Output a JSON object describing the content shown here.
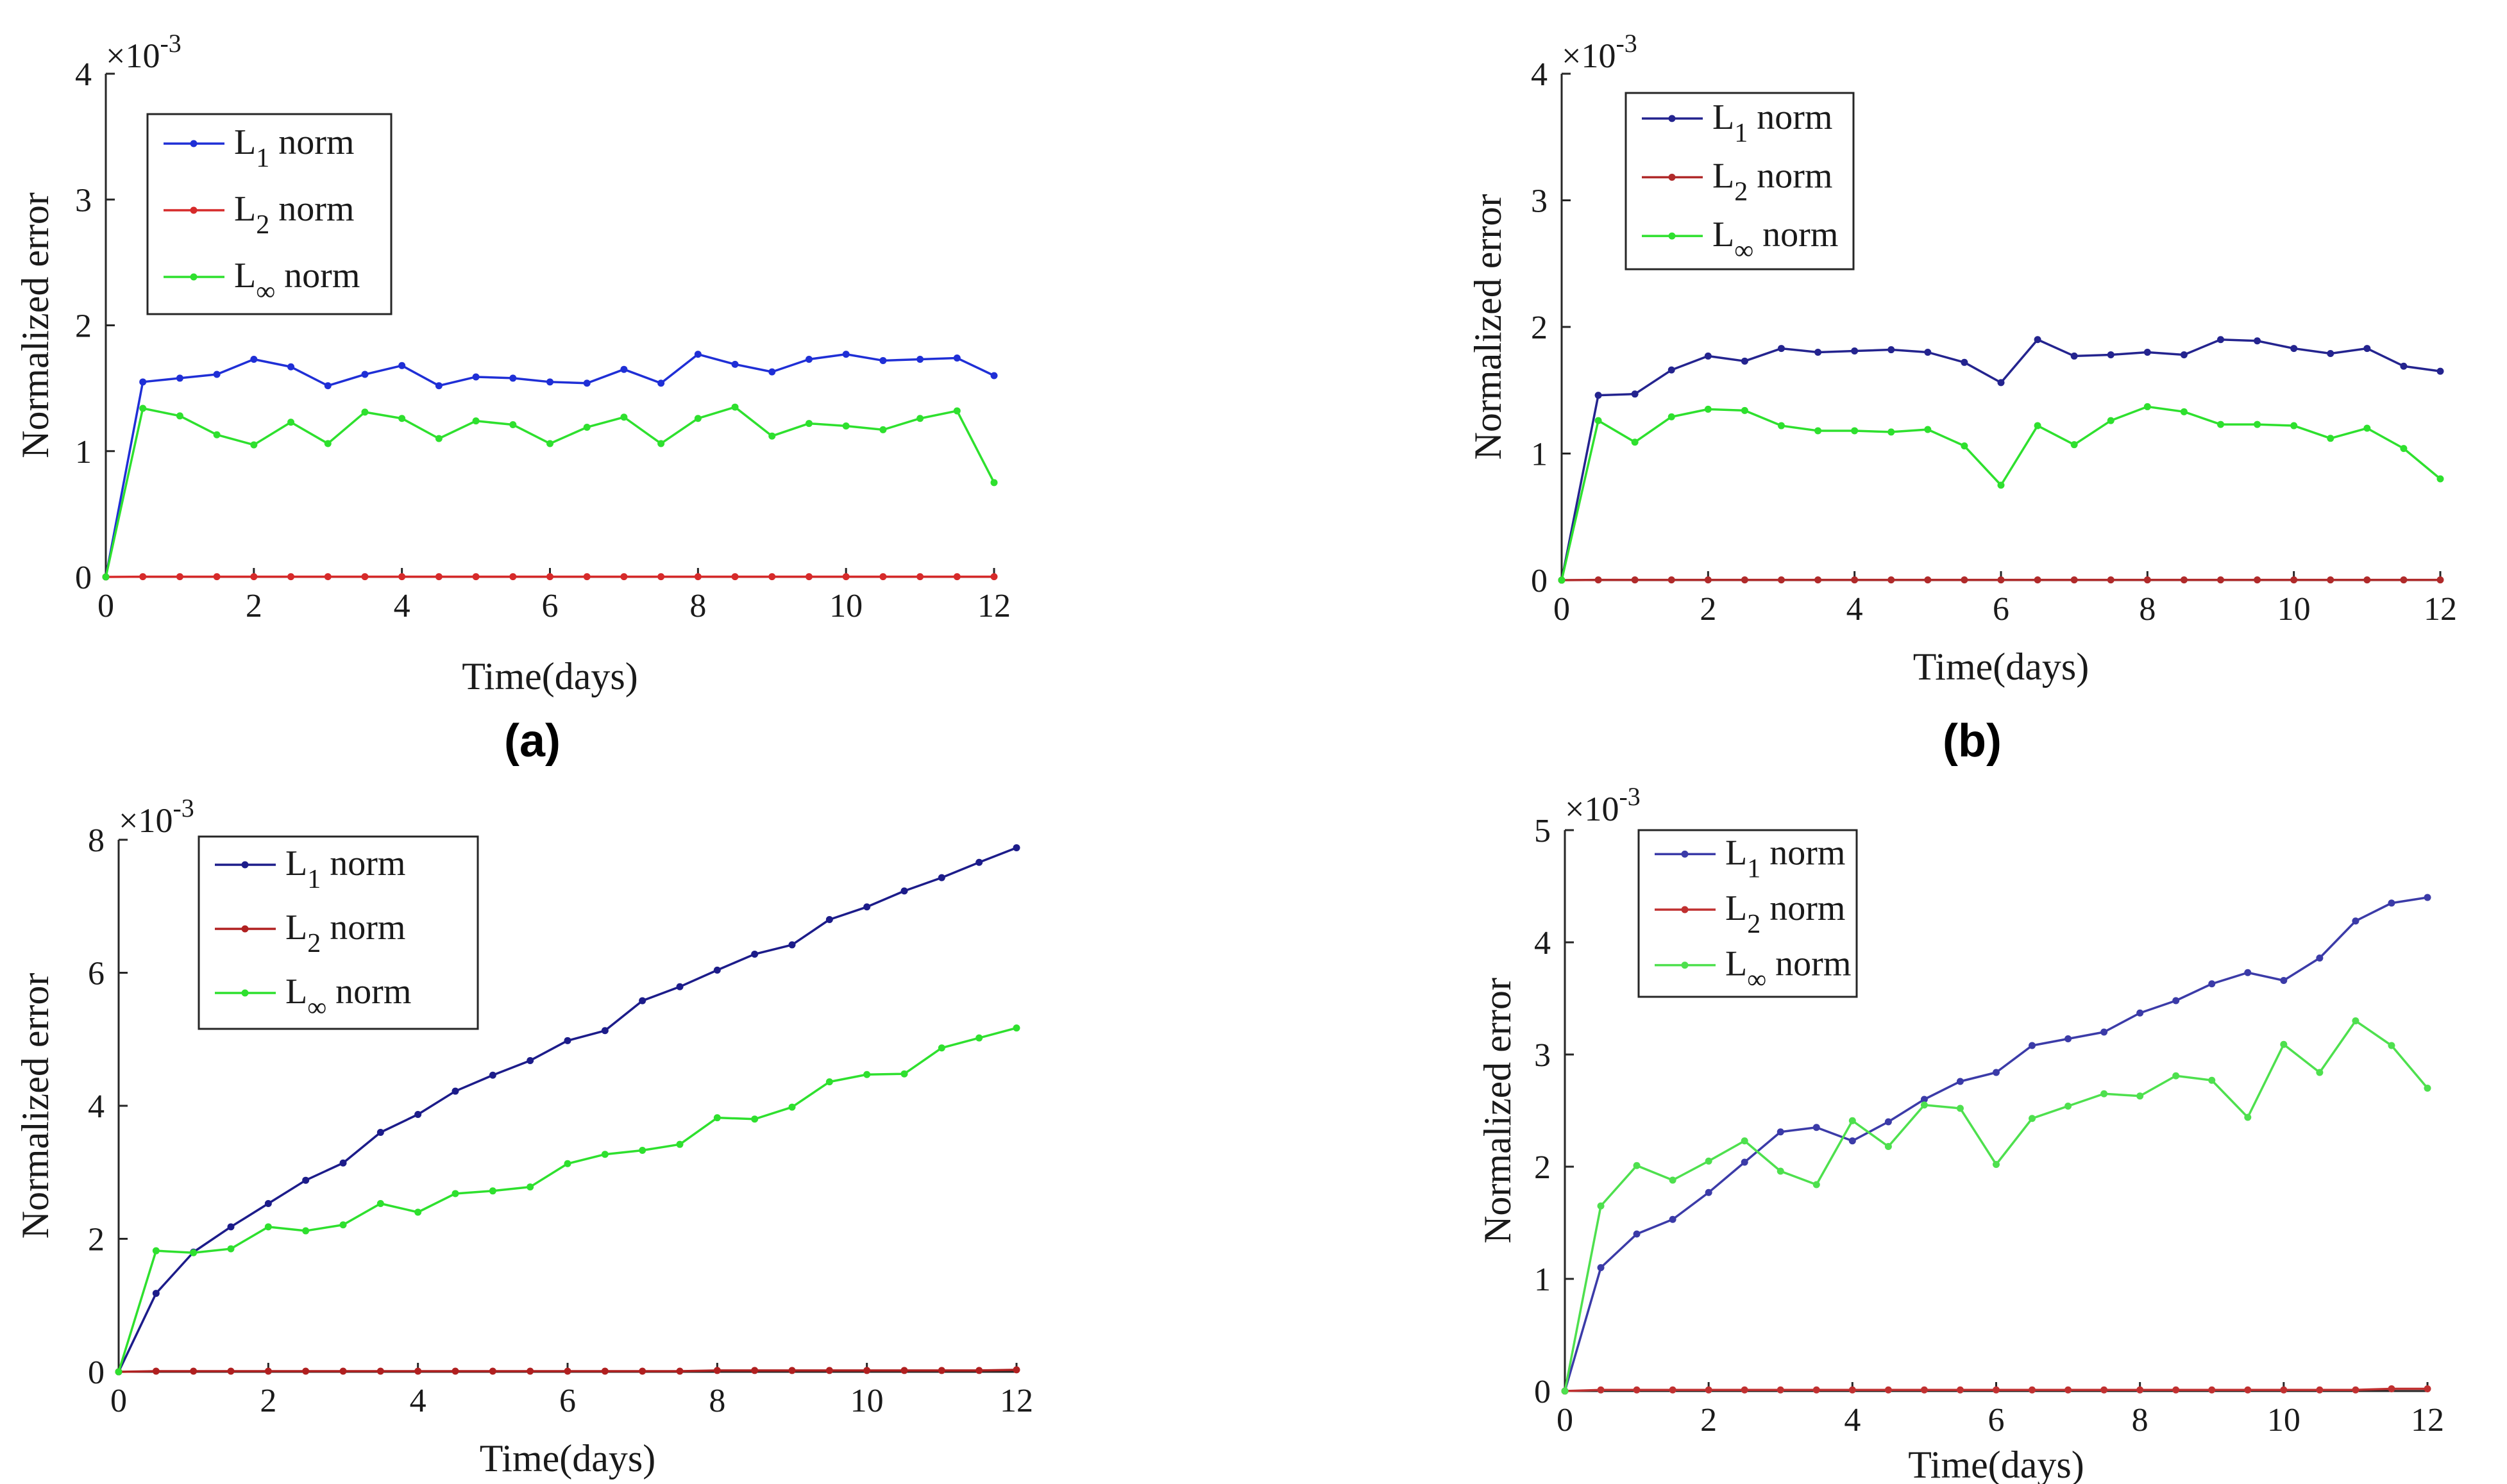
{
  "chart_data": [
    {
      "type": "line",
      "panel_label": "(a)",
      "sci_multiplier": "×10",
      "sci_exponent": "-3",
      "xlabel": "Time(days)",
      "ylabel": "Normalized error",
      "xlim": [
        0,
        12
      ],
      "ylim": [
        0,
        4
      ],
      "xticks": [
        "0",
        "2",
        "4",
        "6",
        "8",
        "10",
        "12"
      ],
      "yticks": [
        "0",
        "1",
        "2",
        "3",
        "4"
      ],
      "legend_position": "top-left",
      "x": [
        0,
        0.5,
        1,
        1.5,
        2,
        2.5,
        3,
        3.5,
        4,
        4.5,
        5,
        5.5,
        6,
        6.5,
        7,
        7.5,
        8,
        8.5,
        9,
        9.5,
        10,
        10.5,
        11,
        11.5,
        12
      ],
      "series": [
        {
          "name": "L1 norm",
          "base": "L",
          "sub": "1",
          "rest": " norm",
          "color": "#1f2fd6",
          "values": [
            0,
            1.55,
            1.58,
            1.61,
            1.73,
            1.67,
            1.52,
            1.61,
            1.68,
            1.52,
            1.59,
            1.58,
            1.55,
            1.54,
            1.65,
            1.54,
            1.77,
            1.69,
            1.63,
            1.73,
            1.77,
            1.72,
            1.73,
            1.74,
            1.6
          ]
        },
        {
          "name": "L2 norm",
          "base": "L",
          "sub": "2",
          "rest": " norm",
          "color": "#d62a2a",
          "values": [
            0,
            0.002,
            0.002,
            0.002,
            0.002,
            0.002,
            0.002,
            0.002,
            0.002,
            0.002,
            0.002,
            0.002,
            0.002,
            0.002,
            0.002,
            0.002,
            0.002,
            0.002,
            0.002,
            0.002,
            0.002,
            0.002,
            0.002,
            0.002,
            0.002
          ]
        },
        {
          "name": "L∞ norm",
          "base": "L",
          "sub": "∞",
          "rest": " norm",
          "color": "#2ee02e",
          "values": [
            0,
            1.34,
            1.28,
            1.13,
            1.05,
            1.23,
            1.06,
            1.31,
            1.26,
            1.1,
            1.24,
            1.21,
            1.06,
            1.19,
            1.27,
            1.06,
            1.26,
            1.35,
            1.12,
            1.22,
            1.2,
            1.17,
            1.26,
            1.32,
            0.75
          ]
        }
      ]
    },
    {
      "type": "line",
      "panel_label": "(b)",
      "sci_multiplier": "×10",
      "sci_exponent": "-3",
      "xlabel": "Time(days)",
      "ylabel": "Normalized error",
      "xlim": [
        0,
        12
      ],
      "ylim": [
        0,
        4
      ],
      "xticks": [
        "0",
        "2",
        "4",
        "6",
        "8",
        "10",
        "12"
      ],
      "yticks": [
        "0",
        "1",
        "2",
        "3",
        "4"
      ],
      "legend_position": "top-left",
      "x": [
        0,
        0.5,
        1,
        1.5,
        2,
        2.5,
        3,
        3.5,
        4,
        4.5,
        5,
        5.5,
        6,
        6.5,
        7,
        7.5,
        8,
        8.5,
        9,
        9.5,
        10,
        10.5,
        11,
        11.5,
        12
      ],
      "series": [
        {
          "name": "L1 norm",
          "base": "L",
          "sub": "1",
          "rest": " norm",
          "color": "#24248f",
          "values": [
            0,
            1.46,
            1.47,
            1.66,
            1.77,
            1.73,
            1.83,
            1.8,
            1.81,
            1.82,
            1.8,
            1.72,
            1.56,
            1.9,
            1.77,
            1.78,
            1.8,
            1.78,
            1.9,
            1.89,
            1.83,
            1.79,
            1.83,
            1.69,
            1.65
          ]
        },
        {
          "name": "L2 norm",
          "base": "L",
          "sub": "2",
          "rest": " norm",
          "color": "#b02a2a",
          "values": [
            0,
            0.002,
            0.002,
            0.002,
            0.002,
            0.002,
            0.002,
            0.002,
            0.002,
            0.002,
            0.002,
            0.002,
            0.002,
            0.002,
            0.002,
            0.002,
            0.002,
            0.002,
            0.002,
            0.002,
            0.002,
            0.002,
            0.002,
            0.002,
            0.002
          ]
        },
        {
          "name": "L∞ norm",
          "base": "L",
          "sub": "∞",
          "rest": " norm",
          "color": "#2ee02e",
          "values": [
            0,
            1.26,
            1.09,
            1.29,
            1.35,
            1.34,
            1.22,
            1.18,
            1.18,
            1.17,
            1.19,
            1.06,
            0.75,
            1.22,
            1.07,
            1.26,
            1.37,
            1.33,
            1.23,
            1.23,
            1.22,
            1.12,
            1.2,
            1.04,
            0.8
          ]
        }
      ]
    },
    {
      "type": "line",
      "panel_label": "",
      "sci_multiplier": "×10",
      "sci_exponent": "-3",
      "xlabel": "Time(days)",
      "ylabel": "Normalized error",
      "xlim": [
        0,
        12
      ],
      "ylim": [
        0,
        8
      ],
      "xticks": [
        "0",
        "2",
        "4",
        "6",
        "8",
        "10",
        "12"
      ],
      "yticks": [
        "0",
        "2",
        "4",
        "6",
        "8"
      ],
      "legend_position": "top-left",
      "x": [
        0,
        0.5,
        1,
        1.5,
        2,
        2.5,
        3,
        3.5,
        4,
        4.5,
        5,
        5.5,
        6,
        6.5,
        7,
        7.5,
        8,
        8.5,
        9,
        9.5,
        10,
        10.5,
        11,
        11.5,
        12
      ],
      "series": [
        {
          "name": "L1 norm",
          "base": "L",
          "sub": "1",
          "rest": " norm",
          "color": "#1c1c8a",
          "values": [
            0,
            1.18,
            1.8,
            2.18,
            2.53,
            2.88,
            3.14,
            3.6,
            3.87,
            4.22,
            4.46,
            4.68,
            4.98,
            5.13,
            5.58,
            5.79,
            6.04,
            6.28,
            6.42,
            6.8,
            6.99,
            7.23,
            7.43,
            7.66,
            7.88
          ]
        },
        {
          "name": "L2 norm",
          "base": "L",
          "sub": "2",
          "rest": " norm",
          "color": "#b02020",
          "values": [
            0,
            0.01,
            0.01,
            0.01,
            0.01,
            0.01,
            0.01,
            0.01,
            0.01,
            0.01,
            0.01,
            0.01,
            0.01,
            0.01,
            0.01,
            0.01,
            0.02,
            0.02,
            0.02,
            0.02,
            0.02,
            0.02,
            0.02,
            0.02,
            0.03
          ]
        },
        {
          "name": "L∞ norm",
          "base": "L",
          "sub": "∞",
          "rest": " norm",
          "color": "#2ee02e",
          "values": [
            0,
            1.82,
            1.79,
            1.85,
            2.18,
            2.12,
            2.21,
            2.53,
            2.4,
            2.68,
            2.72,
            2.78,
            3.13,
            3.27,
            3.33,
            3.42,
            3.82,
            3.8,
            3.98,
            4.36,
            4.47,
            4.48,
            4.87,
            5.02,
            5.17
          ]
        }
      ]
    },
    {
      "type": "line",
      "panel_label": "",
      "sci_multiplier": "×10",
      "sci_exponent": "-3",
      "xlabel": "Time(days)",
      "ylabel": "Normalized error",
      "xlim": [
        0,
        12
      ],
      "ylim": [
        0,
        5
      ],
      "xticks": [
        "0",
        "2",
        "4",
        "6",
        "8",
        "10",
        "12"
      ],
      "yticks": [
        "0",
        "1",
        "2",
        "3",
        "4",
        "5"
      ],
      "legend_position": "top-left",
      "x": [
        0,
        0.5,
        1,
        1.5,
        2,
        2.5,
        3,
        3.5,
        4,
        4.5,
        5,
        5.5,
        6,
        6.5,
        7,
        7.5,
        8,
        8.5,
        9,
        9.5,
        10,
        10.5,
        11,
        11.5,
        12
      ],
      "series": [
        {
          "name": "L1 norm",
          "base": "L",
          "sub": "1",
          "rest": " norm",
          "color": "#3b3ba8",
          "values": [
            0,
            1.1,
            1.4,
            1.53,
            1.77,
            2.04,
            2.31,
            2.35,
            2.23,
            2.4,
            2.6,
            2.76,
            2.84,
            3.08,
            3.14,
            3.2,
            3.37,
            3.48,
            3.63,
            3.73,
            3.66,
            3.86,
            4.19,
            4.35,
            4.4
          ]
        },
        {
          "name": "L2 norm",
          "base": "L",
          "sub": "2",
          "rest": " norm",
          "color": "#c03030",
          "values": [
            0,
            0.01,
            0.01,
            0.01,
            0.01,
            0.01,
            0.01,
            0.01,
            0.01,
            0.01,
            0.01,
            0.01,
            0.01,
            0.01,
            0.01,
            0.01,
            0.01,
            0.01,
            0.01,
            0.01,
            0.01,
            0.01,
            0.01,
            0.02,
            0.02
          ]
        },
        {
          "name": "L∞ norm",
          "base": "L",
          "sub": "∞",
          "rest": " norm",
          "color": "#4ee04e",
          "values": [
            0,
            1.65,
            2.01,
            1.88,
            2.05,
            2.23,
            1.96,
            1.84,
            2.41,
            2.18,
            2.55,
            2.52,
            2.02,
            2.43,
            2.54,
            2.65,
            2.63,
            2.81,
            2.77,
            2.44,
            3.09,
            2.84,
            3.3,
            3.08,
            2.7
          ]
        }
      ]
    }
  ]
}
